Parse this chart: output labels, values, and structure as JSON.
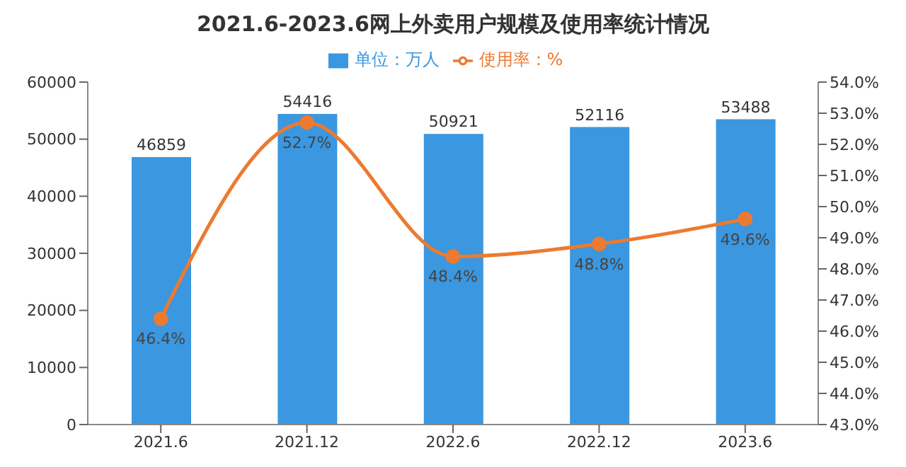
{
  "chart_data": {
    "type": "bar",
    "title": "2021.6-2023.6网上外卖用户规模及使用率统计情况",
    "categories": [
      "2021.6",
      "2021.12",
      "2022.6",
      "2022.12",
      "2023.6"
    ],
    "series": [
      {
        "name": "单位：万人",
        "color": "#3a97e0",
        "values": [
          46859,
          54416,
          50921,
          52116,
          53488
        ],
        "value_labels": [
          "46859",
          "54416",
          "50921",
          "52116",
          "53488"
        ]
      },
      {
        "name": "使用率：%",
        "type": "line",
        "axis": "y2",
        "color": "#ec7a30",
        "values": [
          46.4,
          52.7,
          48.4,
          48.8,
          49.6
        ],
        "value_labels": [
          "46.4%",
          "52.7%",
          "48.4%",
          "48.8%",
          "49.6%"
        ]
      }
    ],
    "ylim": [
      0,
      60000
    ],
    "yticks": [
      0,
      10000,
      20000,
      30000,
      40000,
      50000,
      60000
    ],
    "y2lim": [
      43,
      54
    ],
    "y2ticks": [
      {
        "value": 43,
        "label": "43.0%"
      },
      {
        "value": 44,
        "label": "44.0%"
      },
      {
        "value": 45,
        "label": "45.0%"
      },
      {
        "value": 46,
        "label": "46.0%"
      },
      {
        "value": 47,
        "label": "47.0%"
      },
      {
        "value": 48,
        "label": "48.0%"
      },
      {
        "value": 49,
        "label": "49.0%"
      },
      {
        "value": 50,
        "label": "50.0%"
      },
      {
        "value": 51,
        "label": "51.0%"
      },
      {
        "value": 52,
        "label": "52.0%"
      },
      {
        "value": 53,
        "label": "53.0%"
      },
      {
        "value": 54,
        "label": "54.0%"
      }
    ],
    "legend": "top",
    "marker": "circle"
  }
}
